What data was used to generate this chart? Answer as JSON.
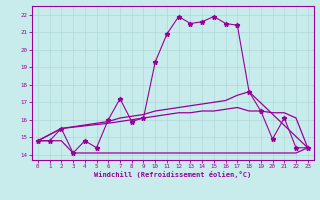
{
  "xlabel": "Windchill (Refroidissement éolien,°C)",
  "ylabel": "",
  "bg_color": "#c8ecec",
  "line_color": "#990099",
  "grid_color": "#b0d8d8",
  "xlim": [
    -0.5,
    23.5
  ],
  "ylim": [
    13.7,
    22.5
  ],
  "xticks": [
    0,
    1,
    2,
    3,
    4,
    5,
    6,
    7,
    8,
    9,
    10,
    11,
    12,
    13,
    14,
    15,
    16,
    17,
    18,
    19,
    20,
    21,
    22,
    23
  ],
  "yticks": [
    14,
    15,
    16,
    17,
    18,
    19,
    20,
    21,
    22
  ],
  "line1_x": [
    0,
    1,
    2,
    3,
    4,
    5,
    6,
    7,
    8,
    9,
    10,
    11,
    12,
    13,
    14,
    15,
    16,
    17,
    18,
    19,
    20,
    21,
    22,
    23
  ],
  "line1_y": [
    14.8,
    14.8,
    15.5,
    14.1,
    14.8,
    14.4,
    16.0,
    17.2,
    15.9,
    16.1,
    19.3,
    20.9,
    21.9,
    21.5,
    21.6,
    21.9,
    21.5,
    21.4,
    17.6,
    16.5,
    14.9,
    16.1,
    14.4,
    14.4
  ],
  "line2_x": [
    0,
    2,
    6,
    7,
    8,
    9,
    10,
    11,
    12,
    13,
    14,
    15,
    16,
    17,
    18,
    23
  ],
  "line2_y": [
    14.8,
    15.5,
    15.9,
    16.1,
    16.2,
    16.3,
    16.5,
    16.6,
    16.7,
    16.8,
    16.9,
    17.0,
    17.1,
    17.4,
    17.6,
    14.4
  ],
  "line3_x": [
    0,
    2,
    6,
    7,
    8,
    9,
    10,
    11,
    12,
    13,
    14,
    15,
    16,
    17,
    18,
    19,
    20,
    21,
    22,
    23
  ],
  "line3_y": [
    14.8,
    15.5,
    15.8,
    15.9,
    16.0,
    16.1,
    16.2,
    16.3,
    16.4,
    16.4,
    16.5,
    16.5,
    16.6,
    16.7,
    16.5,
    16.5,
    16.4,
    16.4,
    16.1,
    14.4
  ],
  "line4_x": [
    0,
    1,
    2,
    3,
    10,
    18,
    19,
    20,
    21,
    22,
    23
  ],
  "line4_y": [
    14.8,
    14.8,
    14.8,
    14.1,
    14.1,
    14.1,
    14.1,
    14.1,
    14.1,
    14.1,
    14.4
  ]
}
